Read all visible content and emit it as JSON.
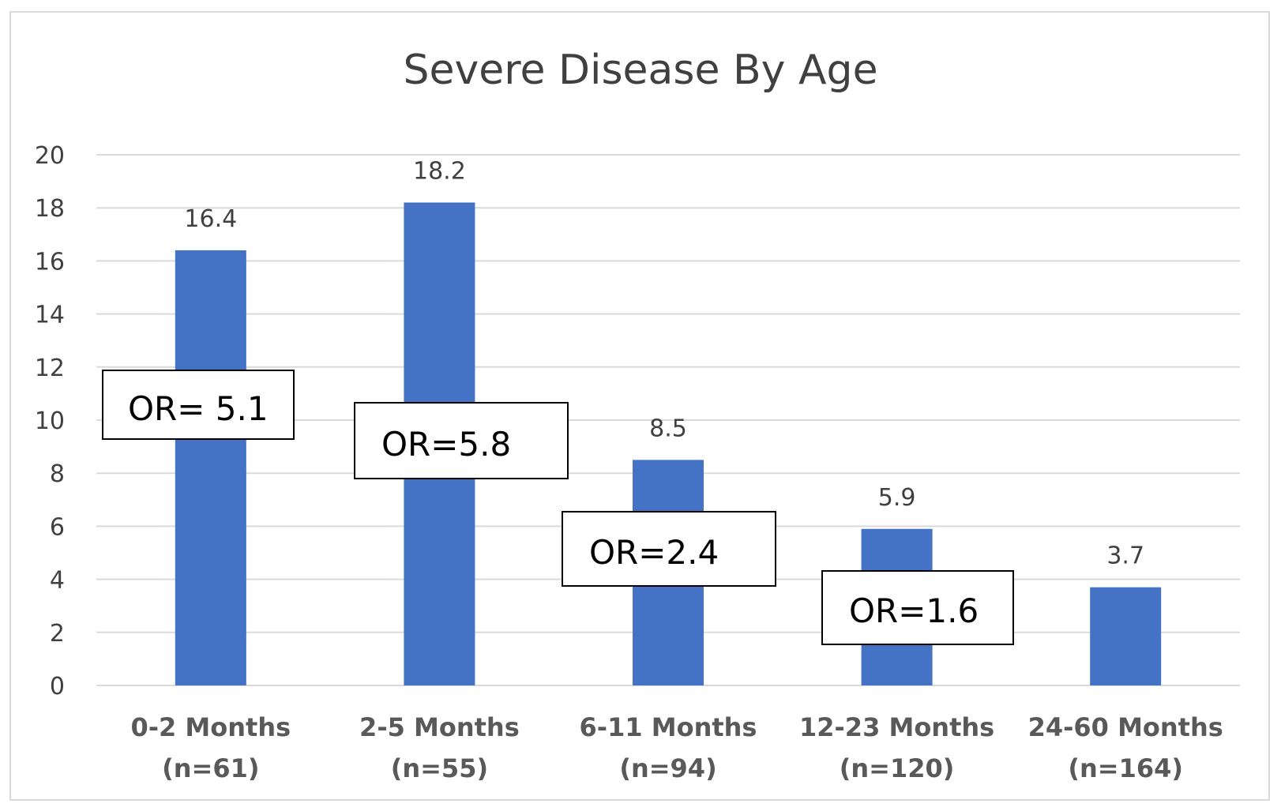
{
  "chart_data": {
    "type": "bar",
    "title": "Severe Disease By Age",
    "xlabel": "",
    "ylabel": "",
    "ylim": [
      0,
      20
    ],
    "y_ticks": [
      0,
      2,
      4,
      6,
      8,
      10,
      12,
      14,
      16,
      18,
      20
    ],
    "grid": true,
    "legend": "none",
    "bar_color": "#4472c4",
    "categories": [
      {
        "line1": "0-2 Months",
        "line2": "(n=61)"
      },
      {
        "line1": "2-5 Months",
        "line2": "(n=55)"
      },
      {
        "line1": "6-11 Months",
        "line2": "(n=94)"
      },
      {
        "line1": "12-23 Months",
        "line2": "(n=120)"
      },
      {
        "line1": "24-60 Months",
        "line2": "(n=164)"
      }
    ],
    "values": [
      16.4,
      18.2,
      8.5,
      5.9,
      3.7
    ],
    "data_labels": [
      "16.4",
      "18.2",
      "8.5",
      "5.9",
      "3.7"
    ],
    "annotations": [
      {
        "text": "OR= 5.1",
        "category_index": 0
      },
      {
        "text": "OR=5.8",
        "category_index": 1
      },
      {
        "text": "OR=2.4",
        "category_index": 2
      },
      {
        "text": "OR=1.6",
        "category_index": 3
      }
    ]
  }
}
